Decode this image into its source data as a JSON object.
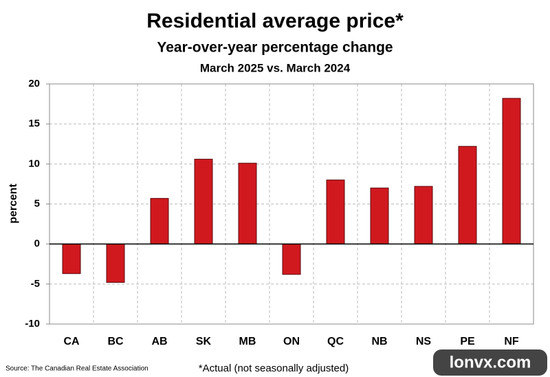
{
  "chart_data": {
    "type": "bar",
    "title": "Residential average price*",
    "subtitle": [
      "Year-over-year percentage change",
      "March 2025 vs. March 2024"
    ],
    "y_label": "percent",
    "categories": [
      "CA",
      "BC",
      "AB",
      "SK",
      "MB",
      "ON",
      "QC",
      "NB",
      "NS",
      "PE",
      "NF"
    ],
    "values": [
      -3.7,
      -4.8,
      5.7,
      10.6,
      10.1,
      -3.8,
      8.0,
      7.0,
      7.2,
      12.2,
      18.2
    ],
    "color": "#d0191f",
    "ylim": [
      -10,
      20
    ],
    "yticks": [
      -10,
      -5,
      0,
      5,
      10,
      15,
      20
    ],
    "grid": true,
    "source": "Source: The Canadian Real Estate Association",
    "footnote": "*Actual (not seasonally adjusted)",
    "watermark": "lonvx.com"
  }
}
